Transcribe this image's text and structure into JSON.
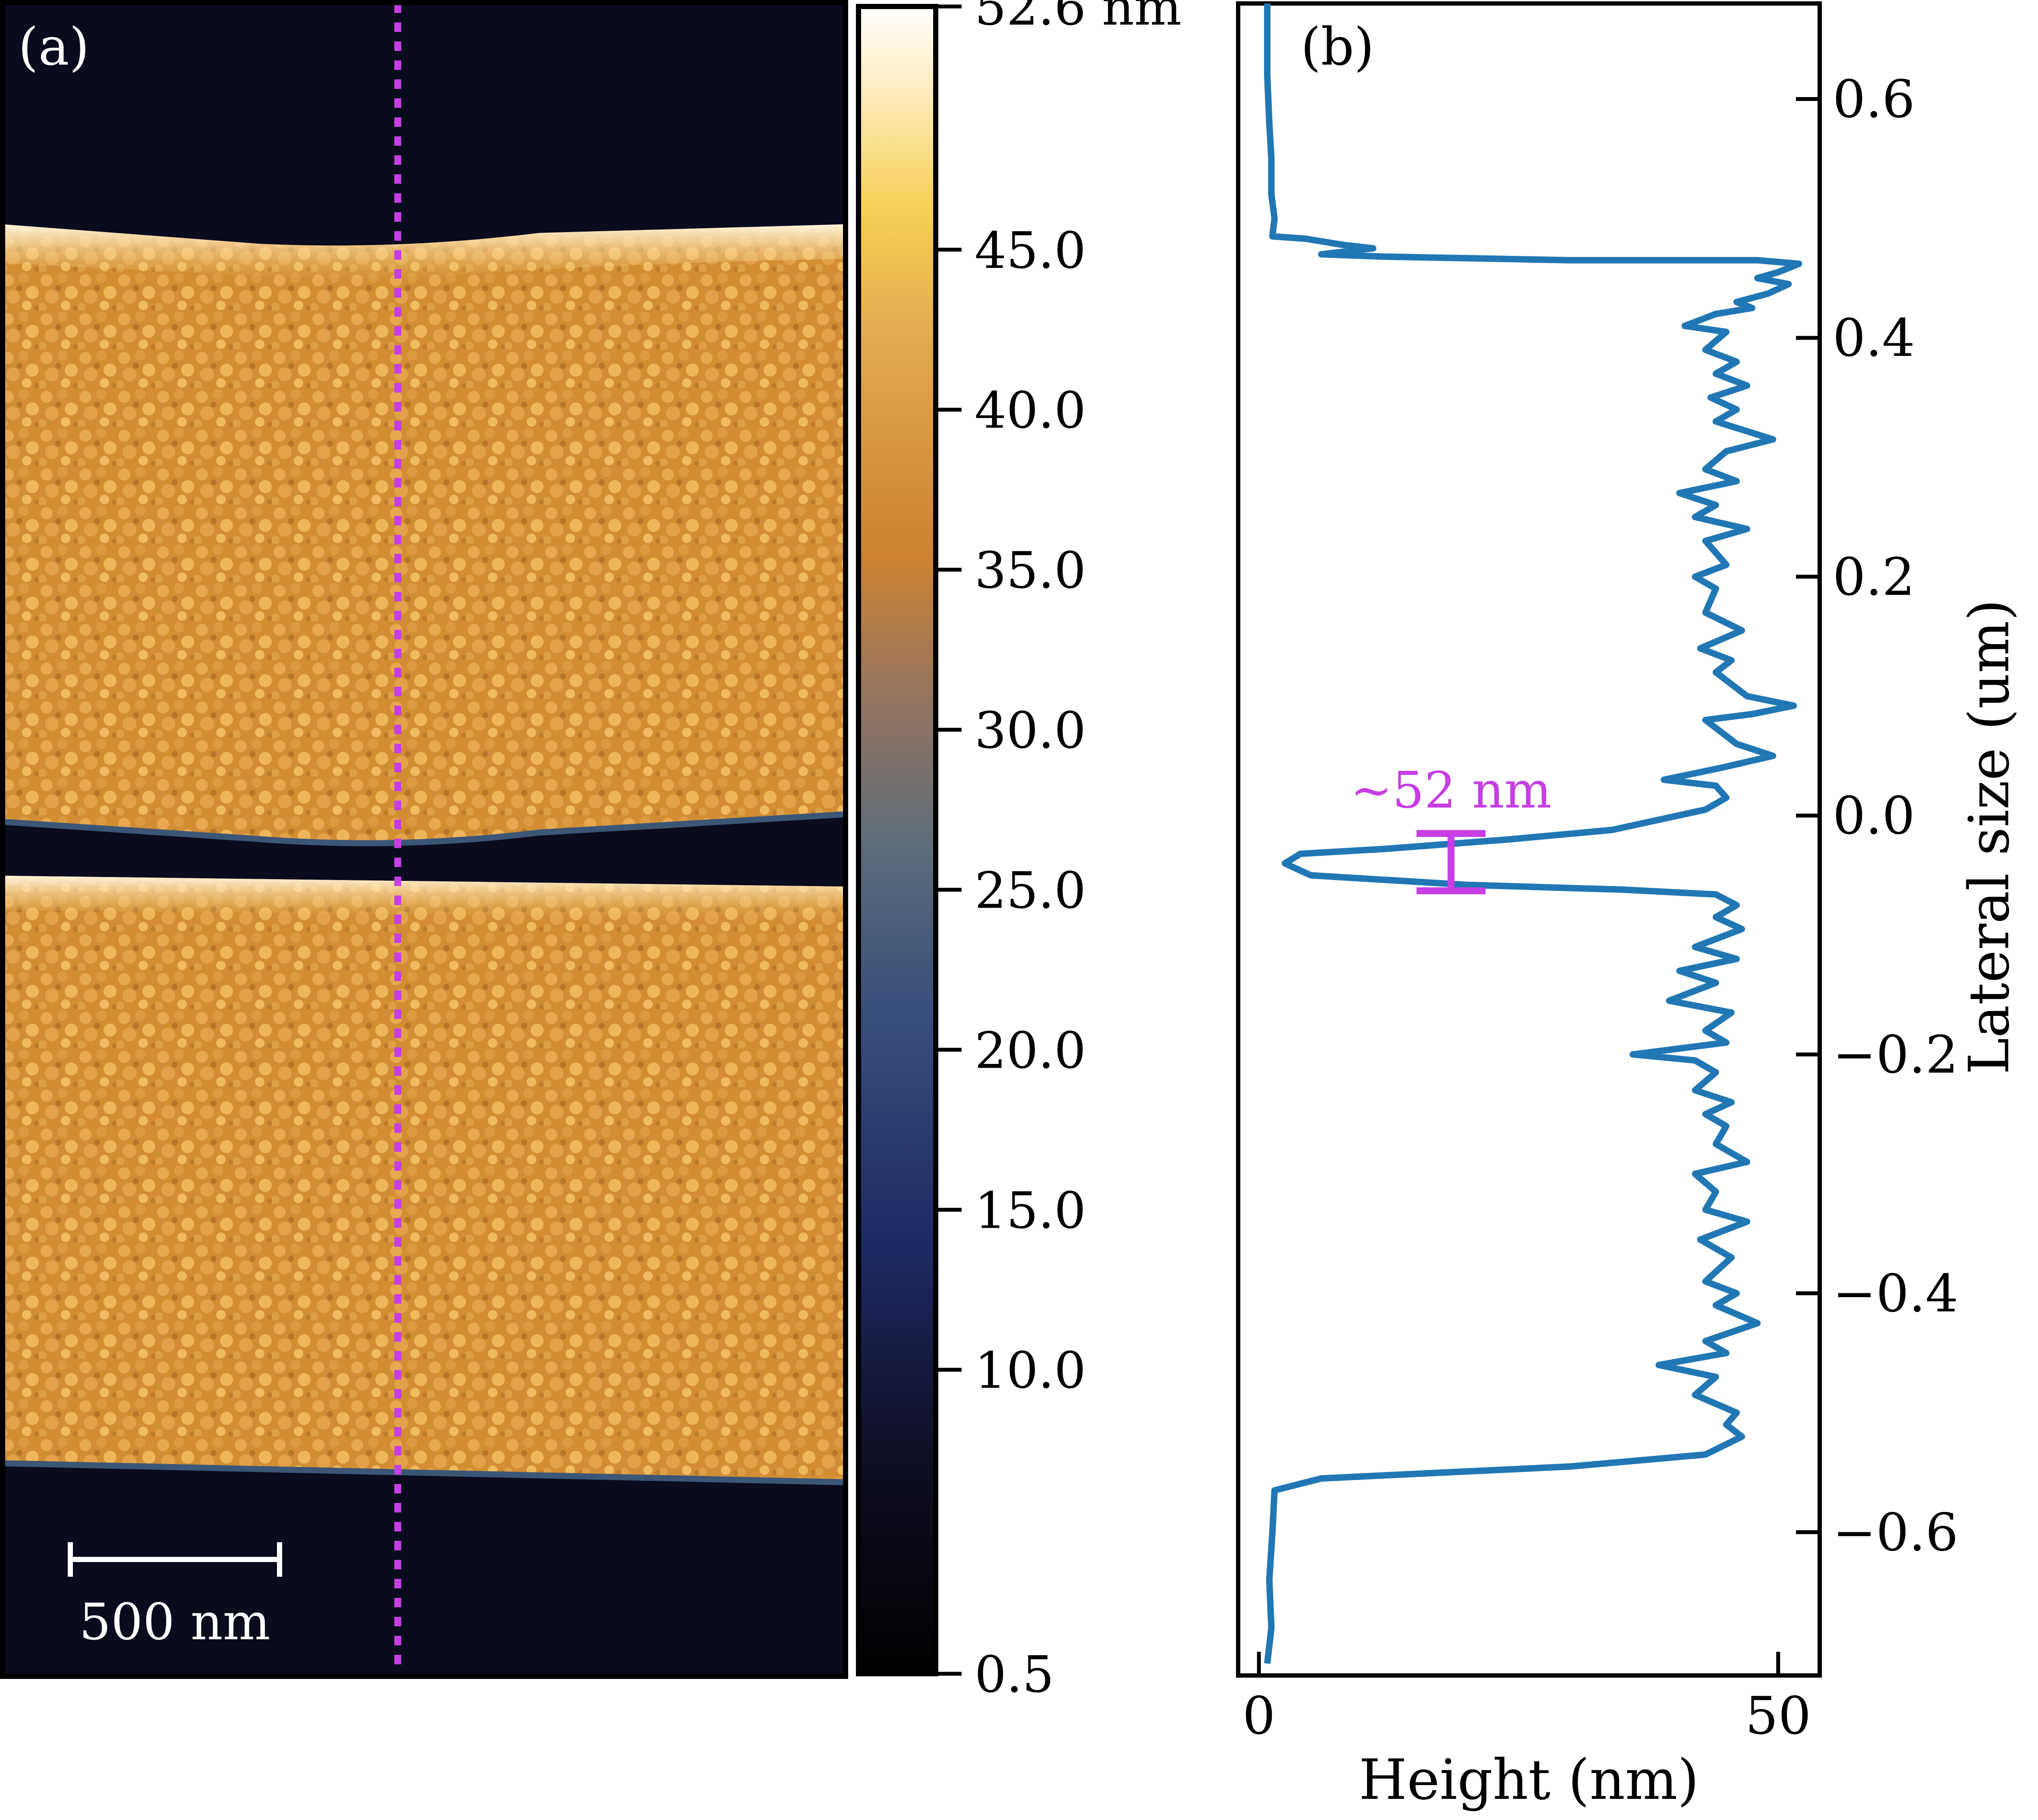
{
  "figure": {
    "panel_a_label": "(a)",
    "panel_b_label": "(b)"
  },
  "colors": {
    "profile_line": "#2177b4",
    "highlight": "#c63ee4",
    "axis": "#000000",
    "afm_background": "#0b0b1e"
  },
  "chart_data": [
    {
      "type": "heatmap",
      "panel": "(a)",
      "colormap": "dark-blue to orange to white",
      "colorbar": {
        "tick_labels": [
          "52.6 nm",
          "45.0",
          "40.0",
          "35.0",
          "30.0",
          "25.0",
          "20.0",
          "15.0",
          "10.0",
          "0.5"
        ],
        "tick_values": [
          52.6,
          45.0,
          40.0,
          35.0,
          30.0,
          25.0,
          20.0,
          15.0,
          10.0,
          0.5
        ],
        "range": [
          0.5,
          52.6
        ]
      },
      "scale_bar_label": "500 nm",
      "annotation": "dotted vertical line marks the profile position"
    },
    {
      "type": "line",
      "panel": "(b)",
      "xlabel": "Height (nm)",
      "ylabel": "Lateral size (um)",
      "xlim": [
        -2,
        54
      ],
      "ylim": [
        -0.72,
        0.68
      ],
      "x_tick_labels": [
        "0",
        "50"
      ],
      "x_tick_values": [
        0,
        50
      ],
      "y_tick_labels": [
        "0.6",
        "0.4",
        "0.2",
        "0.0",
        "−0.2",
        "−0.4",
        "−0.6"
      ],
      "y_tick_values": [
        0.6,
        0.4,
        0.2,
        0.0,
        -0.2,
        -0.4,
        -0.6
      ],
      "annotation": {
        "text": "~52 nm",
        "x": 18.5,
        "y_top": -0.015,
        "y_bottom": -0.063
      },
      "series": [
        {
          "points": [
            [
              0.8,
              0.68
            ],
            [
              0.8,
              0.62
            ],
            [
              1.0,
              0.58
            ],
            [
              1.2,
              0.55
            ],
            [
              1.2,
              0.52
            ],
            [
              1.5,
              0.5
            ],
            [
              1.3,
              0.485
            ],
            [
              4.5,
              0.483
            ],
            [
              8.0,
              0.478
            ],
            [
              11.0,
              0.475
            ],
            [
              6.0,
              0.47
            ],
            [
              12.0,
              0.468
            ],
            [
              30.0,
              0.465
            ],
            [
              48.0,
              0.465
            ],
            [
              52.0,
              0.462
            ],
            [
              50.0,
              0.455
            ],
            [
              48.0,
              0.45
            ],
            [
              51.0,
              0.445
            ],
            [
              49.0,
              0.437
            ],
            [
              46.0,
              0.43
            ],
            [
              47.5,
              0.425
            ],
            [
              44.0,
              0.42
            ],
            [
              41.0,
              0.41
            ],
            [
              45.0,
              0.405
            ],
            [
              43.0,
              0.39
            ],
            [
              46.0,
              0.38
            ],
            [
              44.0,
              0.37
            ],
            [
              47.0,
              0.36
            ],
            [
              43.5,
              0.35
            ],
            [
              46.0,
              0.34
            ],
            [
              44.0,
              0.33
            ],
            [
              49.5,
              0.315
            ],
            [
              45.0,
              0.305
            ],
            [
              43.0,
              0.29
            ],
            [
              46.0,
              0.28
            ],
            [
              40.5,
              0.27
            ],
            [
              44.0,
              0.26
            ],
            [
              42.0,
              0.25
            ],
            [
              47.0,
              0.24
            ],
            [
              43.0,
              0.23
            ],
            [
              45.0,
              0.21
            ],
            [
              42.0,
              0.2
            ],
            [
              44.0,
              0.19
            ],
            [
              43.0,
              0.17
            ],
            [
              46.5,
              0.155
            ],
            [
              42.5,
              0.14
            ],
            [
              45.5,
              0.13
            ],
            [
              44.0,
              0.12
            ],
            [
              47.0,
              0.1
            ],
            [
              51.5,
              0.092
            ],
            [
              47.5,
              0.085
            ],
            [
              43.0,
              0.08
            ],
            [
              44.5,
              0.07
            ],
            [
              46.0,
              0.06
            ],
            [
              49.5,
              0.05
            ],
            [
              44.5,
              0.04
            ],
            [
              39.0,
              0.03
            ],
            [
              44.0,
              0.025
            ],
            [
              45.0,
              0.015
            ],
            [
              43.0,
              0.005
            ],
            [
              34.0,
              -0.012
            ],
            [
              24.0,
              -0.02
            ],
            [
              12.0,
              -0.028
            ],
            [
              4.0,
              -0.032
            ],
            [
              2.5,
              -0.04
            ],
            [
              5.0,
              -0.05
            ],
            [
              20.0,
              -0.058
            ],
            [
              35.0,
              -0.062
            ],
            [
              44.0,
              -0.066
            ],
            [
              46.0,
              -0.075
            ],
            [
              44.0,
              -0.085
            ],
            [
              46.5,
              -0.095
            ],
            [
              42.0,
              -0.11
            ],
            [
              46.0,
              -0.12
            ],
            [
              40.5,
              -0.13
            ],
            [
              44.0,
              -0.14
            ],
            [
              39.5,
              -0.155
            ],
            [
              45.5,
              -0.165
            ],
            [
              43.0,
              -0.18
            ],
            [
              45.0,
              -0.19
            ],
            [
              36.0,
              -0.2
            ],
            [
              42.0,
              -0.205
            ],
            [
              44.0,
              -0.215
            ],
            [
              42.0,
              -0.23
            ],
            [
              45.5,
              -0.24
            ],
            [
              43.0,
              -0.25
            ],
            [
              45.0,
              -0.26
            ],
            [
              44.0,
              -0.275
            ],
            [
              47.0,
              -0.29
            ],
            [
              42.0,
              -0.3
            ],
            [
              44.0,
              -0.315
            ],
            [
              43.0,
              -0.33
            ],
            [
              47.0,
              -0.34
            ],
            [
              42.5,
              -0.355
            ],
            [
              45.5,
              -0.37
            ],
            [
              43.0,
              -0.39
            ],
            [
              46.0,
              -0.4
            ],
            [
              44.0,
              -0.41
            ],
            [
              48.0,
              -0.425
            ],
            [
              43.0,
              -0.44
            ],
            [
              45.0,
              -0.45
            ],
            [
              38.5,
              -0.46
            ],
            [
              44.0,
              -0.47
            ],
            [
              42.0,
              -0.485
            ],
            [
              46.0,
              -0.5
            ],
            [
              45.0,
              -0.51
            ],
            [
              46.5,
              -0.52
            ],
            [
              43.0,
              -0.535
            ],
            [
              30.0,
              -0.545
            ],
            [
              18.0,
              -0.55
            ],
            [
              6.0,
              -0.555
            ],
            [
              1.5,
              -0.565
            ],
            [
              1.3,
              -0.6
            ],
            [
              1.0,
              -0.64
            ],
            [
              1.2,
              -0.68
            ],
            [
              0.8,
              -0.71
            ]
          ]
        }
      ]
    }
  ]
}
